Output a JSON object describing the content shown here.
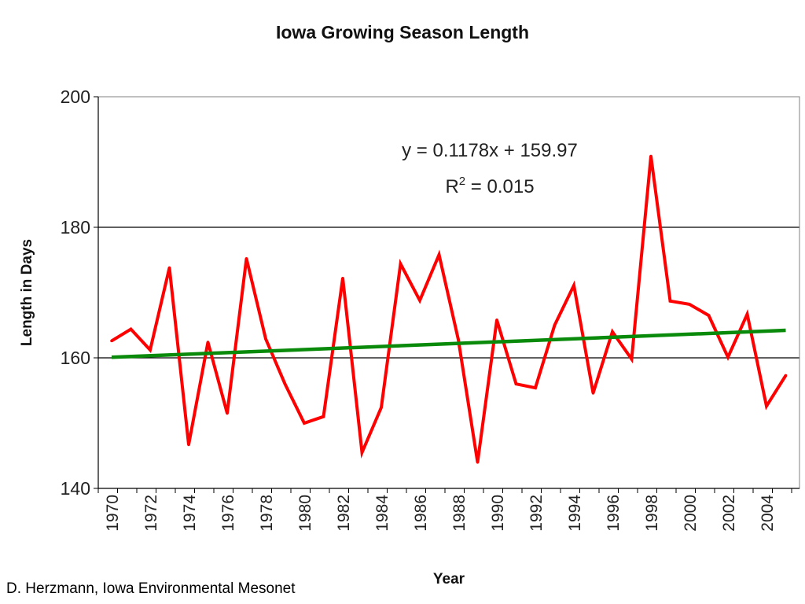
{
  "chart_data": {
    "type": "line",
    "title": "Iowa Growing Season Length",
    "xlabel": "Year",
    "ylabel": "Length in Days",
    "ylim": [
      140,
      200
    ],
    "yticks": [
      140,
      160,
      180,
      200
    ],
    "xlim": [
      1970,
      2005
    ],
    "xticks": [
      "1970",
      "1972",
      "1974",
      "1976",
      "1978",
      "1980",
      "1982",
      "1984",
      "1986",
      "1988",
      "1990",
      "1992",
      "1994",
      "1996",
      "1998",
      "2000",
      "2002",
      "2004"
    ],
    "grid": "horizontal major lines",
    "series": [
      {
        "color": "#ff0000",
        "x": [
          1970,
          1971,
          1972,
          1973,
          1974,
          1975,
          1976,
          1977,
          1978,
          1979,
          1980,
          1981,
          1982,
          1983,
          1984,
          1985,
          1986,
          1987,
          1988,
          1989,
          1990,
          1991,
          1992,
          1993,
          1994,
          1995,
          1996,
          1997,
          1998,
          1999,
          2000,
          2001,
          2002,
          2003,
          2004,
          2005
        ],
        "y": [
          162.6,
          164.4,
          161.2,
          173.8,
          146.7,
          162.4,
          151.5,
          175.2,
          162.9,
          156.0,
          150.0,
          151.0,
          172.2,
          145.5,
          152.4,
          174.4,
          168.8,
          175.8,
          162.8,
          144.0,
          165.8,
          156.0,
          155.4,
          165.0,
          171.1,
          154.6,
          164.0,
          159.8,
          190.9,
          168.7,
          168.2,
          166.5,
          160.1,
          166.7,
          152.6,
          157.3
        ]
      },
      {
        "type": "trendline",
        "color": "#0a8a0a",
        "equation": "y = 0.1178x + 159.97",
        "r2_prefix": "R",
        "r2_exponent": "2",
        "r2_value": " = 0.015",
        "slope": 0.1178,
        "intercept": 159.97
      }
    ]
  },
  "credit": "D. Herzmann, Iowa Environmental Mesonet"
}
